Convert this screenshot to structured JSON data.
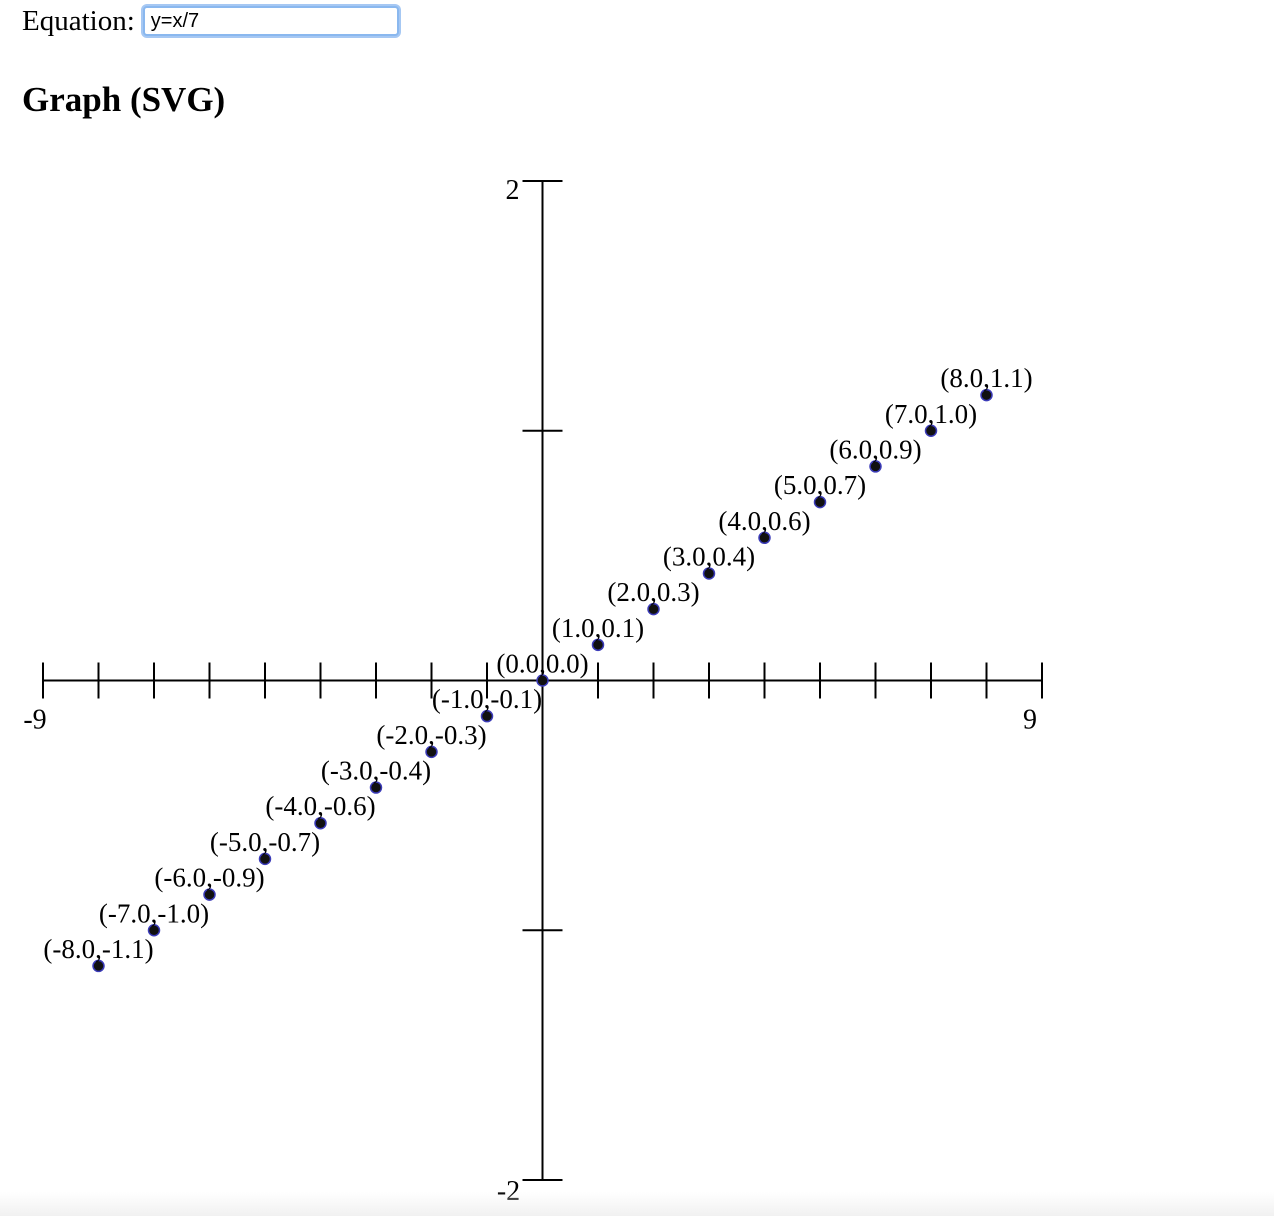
{
  "equation": {
    "label": "Equation:",
    "value": "y=x/7"
  },
  "heading": "Graph (SVG)",
  "chart_data": {
    "type": "scatter",
    "equation": "y=x/7",
    "xlim": [
      -9,
      9
    ],
    "ylim": [
      -2,
      2
    ],
    "x_ticks": [
      -9,
      -8,
      -7,
      -6,
      -5,
      -4,
      -3,
      -2,
      -1,
      0,
      1,
      2,
      3,
      4,
      5,
      6,
      7,
      8,
      9
    ],
    "y_ticks": [
      -2,
      -1,
      0,
      1,
      2
    ],
    "axis_labels": {
      "x_min": "-9",
      "x_max": "9",
      "y_min": "-2",
      "y_max": "2"
    },
    "grid": false,
    "points": [
      {
        "x": -8,
        "y": -1.142857,
        "label": "(-8.0,-1.1)"
      },
      {
        "x": -7,
        "y": -1.0,
        "label": "(-7.0,-1.0)"
      },
      {
        "x": -6,
        "y": -0.857143,
        "label": "(-6.0,-0.9)"
      },
      {
        "x": -5,
        "y": -0.714286,
        "label": "(-5.0,-0.7)"
      },
      {
        "x": -4,
        "y": -0.571429,
        "label": "(-4.0,-0.6)"
      },
      {
        "x": -3,
        "y": -0.428571,
        "label": "(-3.0,-0.4)"
      },
      {
        "x": -2,
        "y": -0.285714,
        "label": "(-2.0,-0.3)"
      },
      {
        "x": -1,
        "y": -0.142857,
        "label": "(-1.0,-0.1)"
      },
      {
        "x": 0,
        "y": 0.0,
        "label": "(0.0,0.0)"
      },
      {
        "x": 1,
        "y": 0.142857,
        "label": "(1.0,0.1)"
      },
      {
        "x": 2,
        "y": 0.285714,
        "label": "(2.0,0.3)"
      },
      {
        "x": 3,
        "y": 0.428571,
        "label": "(3.0,0.4)"
      },
      {
        "x": 4,
        "y": 0.571429,
        "label": "(4.0,0.6)"
      },
      {
        "x": 5,
        "y": 0.714286,
        "label": "(5.0,0.7)"
      },
      {
        "x": 6,
        "y": 0.857143,
        "label": "(6.0,0.9)"
      },
      {
        "x": 7,
        "y": 1.0,
        "label": "(7.0,1.0)"
      },
      {
        "x": 8,
        "y": 1.142857,
        "label": "(8.0,1.1)"
      }
    ]
  }
}
